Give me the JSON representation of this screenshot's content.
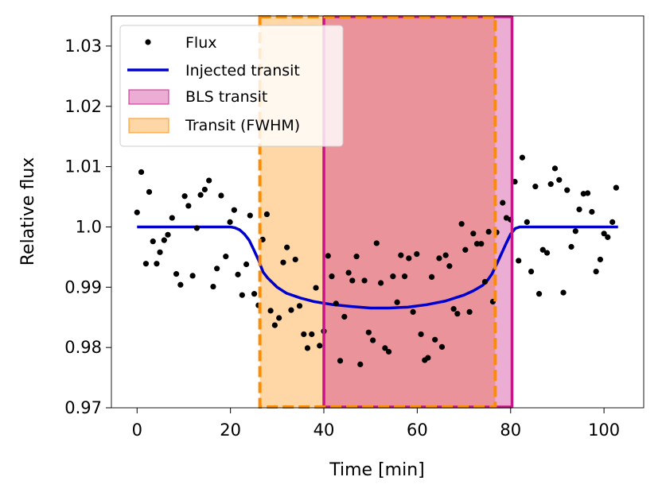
{
  "chart_data": {
    "type": "scatter",
    "title": "",
    "xlabel": "Time [min]",
    "ylabel": "Relative flux",
    "xlim": [
      -5.5,
      108.5
    ],
    "ylim": [
      0.97,
      1.035
    ],
    "xticks": [
      0,
      20,
      40,
      60,
      80,
      100
    ],
    "xtick_labels": [
      "0",
      "20",
      "40",
      "60",
      "80",
      "100"
    ],
    "yticks": [
      0.97,
      0.98,
      0.99,
      1.0,
      1.01,
      1.02,
      1.03
    ],
    "ytick_labels": [
      "0.97",
      "0.98",
      "0.99",
      "1.0",
      "1.01",
      "1.02",
      "1.03"
    ],
    "legend_position": "top-left",
    "legend": [
      {
        "label": "Flux",
        "kind": "marker"
      },
      {
        "label": "Injected transit",
        "kind": "line"
      },
      {
        "label": "BLS transit",
        "kind": "patch-magenta"
      },
      {
        "label": "Transit (FWHM)",
        "kind": "patch-orange"
      }
    ],
    "regions": {
      "fwhm_transit": {
        "label": "Transit (FWHM)",
        "x0": 26.3,
        "x1": 76.7,
        "color": "#ff8c00"
      },
      "bls_transit": {
        "label": "BLS transit",
        "x0": 40.0,
        "x1": 80.3,
        "color": "#c71585"
      }
    },
    "model": {
      "label": "Injected transit",
      "color": "#0000cd",
      "x": [
        0,
        20,
        21,
        22,
        23,
        24,
        25,
        26,
        27,
        28,
        30,
        32,
        35,
        38,
        42,
        46,
        50,
        54,
        58,
        62,
        66,
        70,
        72,
        74,
        75,
        76,
        77,
        78,
        79,
        80,
        81,
        82,
        103
      ],
      "y": [
        1.0,
        1.0,
        0.99985,
        0.9995,
        0.9988,
        0.9978,
        0.9962,
        0.9945,
        0.9925,
        0.9915,
        0.99,
        0.989,
        0.9882,
        0.9876,
        0.9871,
        0.9868,
        0.98655,
        0.98655,
        0.9867,
        0.9871,
        0.9877,
        0.9887,
        0.9894,
        0.9903,
        0.9911,
        0.9922,
        0.9938,
        0.9955,
        0.9972,
        0.9988,
        0.99975,
        1.0,
        1.0
      ]
    },
    "series": [
      {
        "name": "Flux",
        "color": "#000000",
        "points": [
          [
            0.0,
            1.0024
          ],
          [
            0.9,
            1.0091
          ],
          [
            1.9,
            0.9939
          ],
          [
            2.6,
            1.0058
          ],
          [
            3.4,
            0.9976
          ],
          [
            4.2,
            0.9939
          ],
          [
            4.9,
            0.9958
          ],
          [
            5.8,
            0.9978
          ],
          [
            6.6,
            0.9987
          ],
          [
            7.5,
            1.0015
          ],
          [
            8.4,
            0.9922
          ],
          [
            9.3,
            0.9904
          ],
          [
            10.2,
            1.0051
          ],
          [
            11.0,
            1.0035
          ],
          [
            11.9,
            0.9919
          ],
          [
            12.8,
            0.9998
          ],
          [
            13.6,
            1.0053
          ],
          [
            14.5,
            1.0062
          ],
          [
            15.4,
            1.0077
          ],
          [
            16.3,
            0.9901
          ],
          [
            17.1,
            0.9931
          ],
          [
            18.0,
            1.0052
          ],
          [
            19.0,
            0.9951
          ],
          [
            19.9,
            1.0008
          ],
          [
            20.8,
            1.0028
          ],
          [
            21.6,
            0.9921
          ],
          [
            22.5,
            0.9887
          ],
          [
            23.4,
            0.9938
          ],
          [
            24.2,
            1.0019
          ],
          [
            25.1,
            0.9889
          ],
          [
            26.0,
            0.987
          ],
          [
            26.9,
            0.9979
          ],
          [
            27.8,
            1.0021
          ],
          [
            28.6,
            0.9861
          ],
          [
            29.5,
            0.9837
          ],
          [
            30.4,
            0.9849
          ],
          [
            31.3,
            0.9941
          ],
          [
            32.1,
            0.9966
          ],
          [
            33.0,
            0.9862
          ],
          [
            33.9,
            0.9946
          ],
          [
            34.8,
            0.9869
          ],
          [
            35.7,
            0.9822
          ],
          [
            36.5,
            0.9799
          ],
          [
            37.4,
            0.9822
          ],
          [
            38.3,
            0.9899
          ],
          [
            39.1,
            0.9803
          ],
          [
            40.0,
            0.9827
          ],
          [
            40.9,
            0.9952
          ],
          [
            41.7,
            0.9918
          ],
          [
            42.6,
            0.9873
          ],
          [
            43.5,
            0.9778
          ],
          [
            44.4,
            0.9851
          ],
          [
            45.3,
            0.9924
          ],
          [
            46.1,
            0.9911
          ],
          [
            47.0,
            0.9951
          ],
          [
            47.8,
            0.9772
          ],
          [
            48.7,
            0.9911
          ],
          [
            49.6,
            0.9825
          ],
          [
            50.5,
            0.9812
          ],
          [
            51.3,
            0.9973
          ],
          [
            52.2,
            0.9907
          ],
          [
            53.1,
            0.9799
          ],
          [
            53.9,
            0.9793
          ],
          [
            54.8,
            0.9918
          ],
          [
            55.7,
            0.9875
          ],
          [
            56.5,
            0.9953
          ],
          [
            57.3,
            0.9918
          ],
          [
            58.2,
            0.9948
          ],
          [
            59.1,
            0.9859
          ],
          [
            59.9,
            0.9955
          ],
          [
            60.8,
            0.9822
          ],
          [
            61.6,
            0.9779
          ],
          [
            62.3,
            0.9783
          ],
          [
            63.1,
            0.9917
          ],
          [
            63.8,
            0.9813
          ],
          [
            64.7,
            0.9948
          ],
          [
            65.3,
            0.9801
          ],
          [
            66.1,
            0.9953
          ],
          [
            66.9,
            0.9935
          ],
          [
            67.8,
            0.9864
          ],
          [
            68.6,
            0.9856
          ],
          [
            69.5,
            1.0005
          ],
          [
            70.3,
            0.9962
          ],
          [
            71.2,
            0.9859
          ],
          [
            72.0,
            0.9989
          ],
          [
            72.8,
            0.9972
          ],
          [
            73.7,
            0.9972
          ],
          [
            74.5,
            0.9909
          ],
          [
            75.3,
            0.9992
          ],
          [
            76.2,
            0.9876
          ],
          [
            77.0,
            0.9991
          ],
          [
            78.3,
            1.004
          ],
          [
            79.1,
            1.0015
          ],
          [
            80.0,
            1.0012
          ],
          [
            80.9,
            1.0075
          ],
          [
            81.7,
            0.9944
          ],
          [
            82.5,
            1.0115
          ],
          [
            83.5,
            1.0008
          ],
          [
            84.4,
            0.9926
          ],
          [
            85.3,
            1.0067
          ],
          [
            86.1,
            0.9889
          ],
          [
            86.9,
            0.9962
          ],
          [
            87.8,
            0.9957
          ],
          [
            88.6,
            1.0071
          ],
          [
            89.5,
            1.0097
          ],
          [
            90.4,
            1.0078
          ],
          [
            91.3,
            0.9891
          ],
          [
            92.1,
            1.0061
          ],
          [
            93.0,
            0.9967
          ],
          [
            93.9,
            0.9993
          ],
          [
            94.7,
            1.0029
          ],
          [
            95.6,
            1.0055
          ],
          [
            96.5,
            1.0056
          ],
          [
            97.4,
            1.0025
          ],
          [
            98.3,
            0.9926
          ],
          [
            99.2,
            0.9946
          ],
          [
            100.0,
            0.9989
          ],
          [
            100.8,
            0.9983
          ],
          [
            101.8,
            1.0008
          ],
          [
            102.6,
            1.0065
          ]
        ]
      }
    ]
  }
}
